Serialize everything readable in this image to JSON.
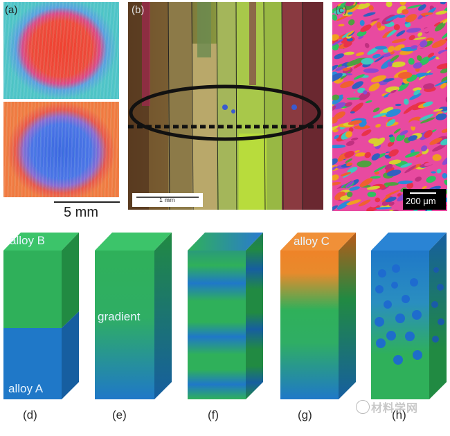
{
  "top_panels": {
    "a": {
      "letter": "(a)",
      "scale_label": "5 mm"
    },
    "b": {
      "letter": "(b)",
      "scale_label": "1 mm"
    },
    "c": {
      "letter": "(c)",
      "scale_label": "200 μm"
    }
  },
  "bottom_panels": {
    "d": {
      "letter": "(d)",
      "top_label": "alloy B",
      "bottom_label": "alloy A"
    },
    "e": {
      "letter": "(e)",
      "mid_label": "gradient"
    },
    "f": {
      "letter": "(f)"
    },
    "g": {
      "letter": "(g)",
      "top_label": "alloy C"
    },
    "h": {
      "letter": "(h)"
    }
  },
  "watermark": {
    "text": "材料学网"
  },
  "colors": {
    "alloy_green": "#2fb05a",
    "alloy_blue": "#1f78c8",
    "alloy_orange": "#ef8328"
  }
}
